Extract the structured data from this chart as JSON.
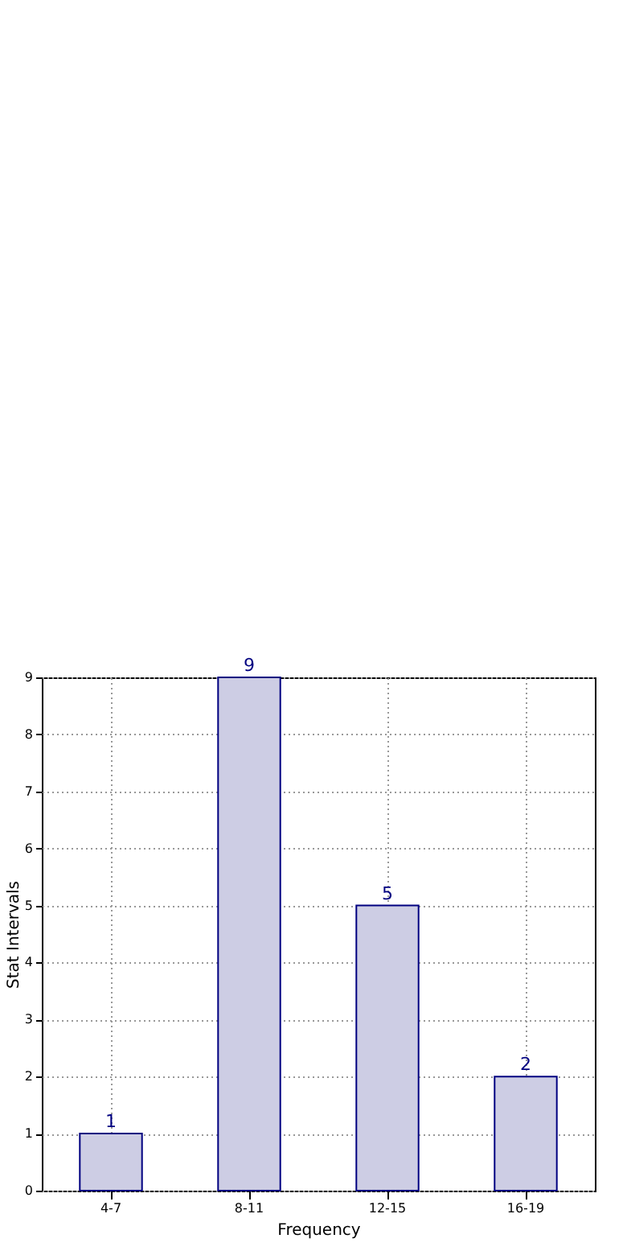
{
  "chart_data": {
    "type": "bar",
    "xlabel": "Frequency",
    "ylabel": "Stat Intervals",
    "categories": [
      "4-7",
      "8-11",
      "12-15",
      "16-19"
    ],
    "series": [
      {
        "color": "#cdcde4",
        "values": [
          1,
          9,
          5,
          2
        ]
      }
    ],
    "ylim": [
      0,
      9
    ],
    "yticks": [
      0,
      1,
      2,
      3,
      4,
      5,
      6,
      7,
      8,
      9
    ],
    "grid": true,
    "data_labels": true
  }
}
